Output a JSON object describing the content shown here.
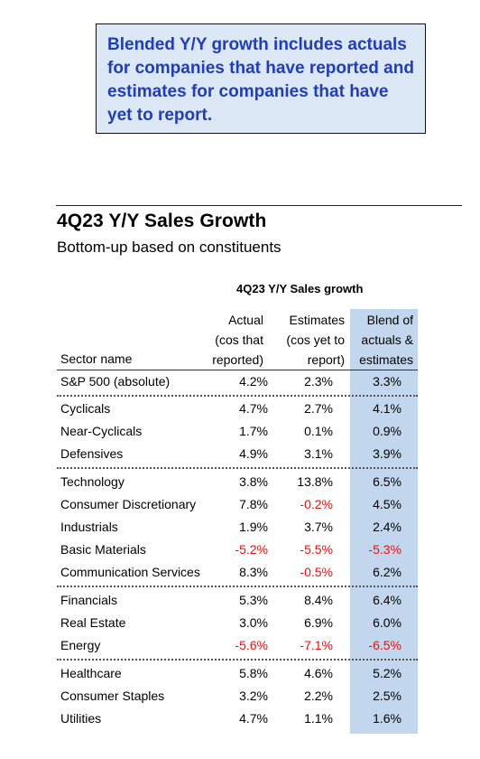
{
  "callout": {
    "lines": [
      "Blended Y/Y growth includes actuals",
      "for companies that have reported and",
      "estimates for companies that have",
      "yet to report."
    ]
  },
  "title": "4Q23 Y/Y Sales Growth",
  "subtitle": "Bottom-up based on constituents",
  "group_title": "4Q23 Y/Y Sales growth",
  "headers": {
    "sector": "Sector name",
    "actual": [
      "Actual",
      "(cos that",
      "reported)"
    ],
    "estimates": [
      "Estimates",
      "(cos yet to",
      "report)"
    ],
    "blend": [
      "Blend of",
      "actuals &",
      "estimates"
    ]
  },
  "rows": [
    {
      "name": "S&P 500 (absolute)",
      "actual": "4.2%",
      "est": "2.3%",
      "blend": "3.3%"
    },
    {
      "name": "Cyclicals",
      "actual": "4.7%",
      "est": "2.7%",
      "blend": "4.1%"
    },
    {
      "name": "Near-Cyclicals",
      "actual": "1.7%",
      "est": "0.1%",
      "blend": "0.9%"
    },
    {
      "name": "Defensives",
      "actual": "4.9%",
      "est": "3.1%",
      "blend": "3.9%"
    },
    {
      "name": "Technology",
      "actual": "3.8%",
      "est": "13.8%",
      "blend": "6.5%"
    },
    {
      "name": "Consumer Discretionary",
      "actual": "7.8%",
      "est": "-0.2%",
      "blend": "4.5%"
    },
    {
      "name": "Industrials",
      "actual": "1.9%",
      "est": "3.7%",
      "blend": "2.4%"
    },
    {
      "name": "Basic Materials",
      "actual": "-5.2%",
      "est": "-5.5%",
      "blend": "-5.3%"
    },
    {
      "name": "Communication Services",
      "actual": "8.3%",
      "est": "-0.5%",
      "blend": "6.2%"
    },
    {
      "name": "Financials",
      "actual": "5.3%",
      "est": "8.4%",
      "blend": "6.4%"
    },
    {
      "name": "Real Estate",
      "actual": "3.0%",
      "est": "6.9%",
      "blend": "6.0%"
    },
    {
      "name": "Energy",
      "actual": "-5.6%",
      "est": "-7.1%",
      "blend": "-6.5%"
    },
    {
      "name": "Healthcare",
      "actual": "5.8%",
      "est": "4.6%",
      "blend": "5.2%"
    },
    {
      "name": "Consumer Staples",
      "actual": "3.2%",
      "est": "2.2%",
      "blend": "2.5%"
    },
    {
      "name": "Utilities",
      "actual": "4.7%",
      "est": "1.1%",
      "blend": "1.6%"
    }
  ],
  "colors": {
    "callout_bg": "#dde8f6",
    "callout_text": "#1f3dbd",
    "blend_column_bg": "#c2d7ee",
    "negative": "#ee1111"
  }
}
